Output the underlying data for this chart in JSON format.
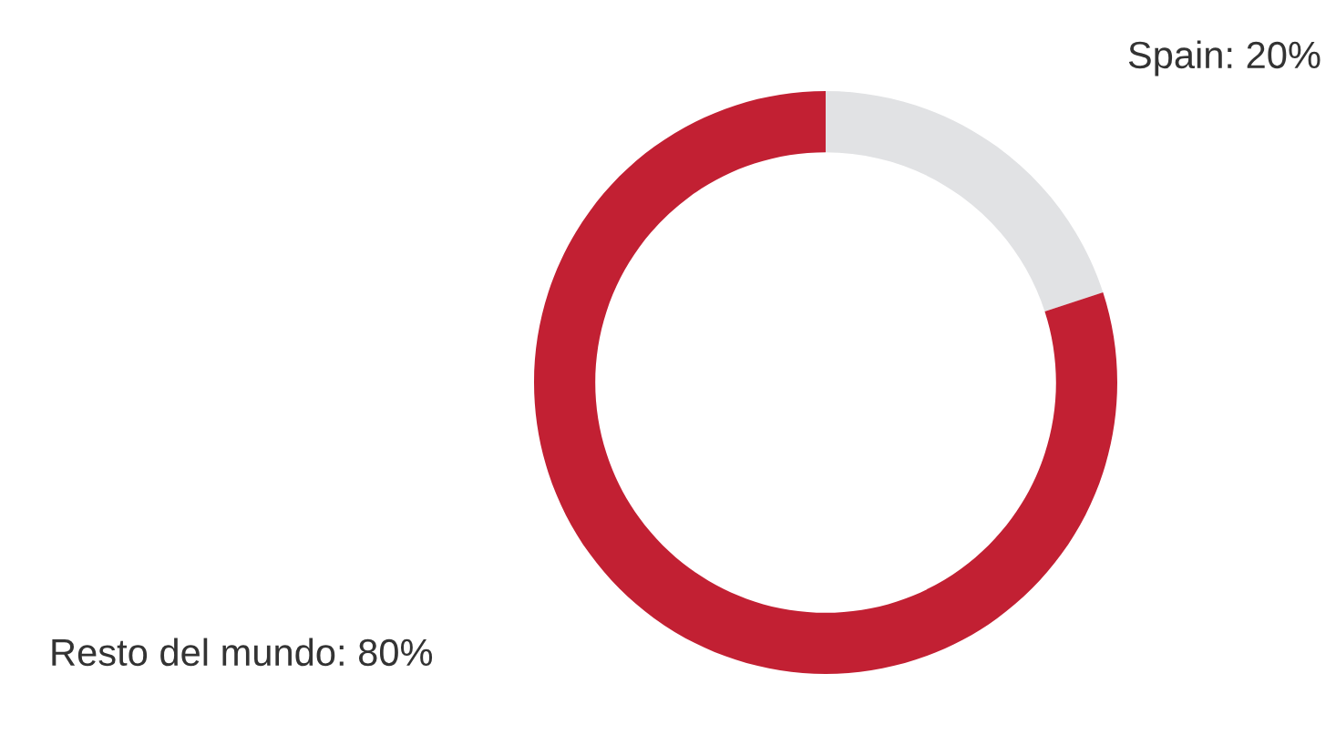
{
  "chart_data": {
    "type": "donut",
    "categories": [
      "Spain",
      "Resto del mundo"
    ],
    "values": [
      20,
      80
    ],
    "value_labels": [
      "20%",
      "80%"
    ],
    "colors": [
      "#e1e2e4",
      "#c22033"
    ],
    "legend": false
  }
}
